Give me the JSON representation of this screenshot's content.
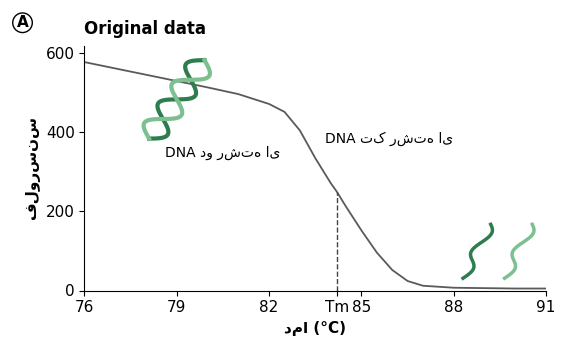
{
  "chart_data": {
    "type": "line",
    "title": "Original data",
    "x_label": "دما (°C)",
    "y_label": "فلورسنس",
    "annotations": [
      "A",
      "DNA دو رشته ای",
      "DNA تک رشته ای"
    ],
    "x": [
      76,
      77,
      78,
      79,
      80,
      81,
      82,
      82.5,
      83,
      83.5,
      84,
      84.2,
      84.5,
      85,
      85.5,
      86,
      86.5,
      87,
      88,
      89,
      90,
      91
    ],
    "values": [
      578,
      562,
      546,
      530,
      514,
      497,
      472,
      452,
      405,
      335,
      272,
      250,
      212,
      152,
      96,
      52,
      24,
      12,
      7,
      6,
      5,
      5
    ],
    "color": "#5a5a5a",
    "xlim": [
      76,
      91
    ],
    "xticks": [
      76,
      79,
      82,
      {
        "value": 84.2,
        "label": "Tm"
      },
      85,
      88,
      91
    ],
    "ylim": [
      0,
      620
    ],
    "yticks": [
      0,
      200,
      400,
      600
    ],
    "grid": false
  }
}
